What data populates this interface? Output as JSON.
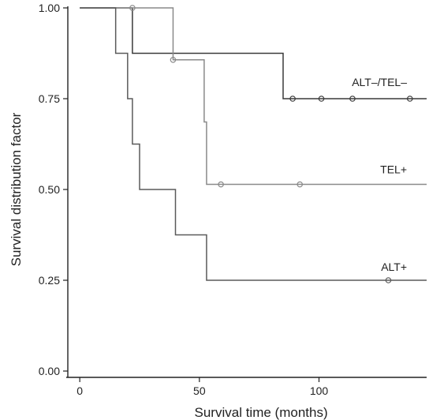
{
  "chart_data": {
    "type": "line",
    "subtype": "kaplan-meier step",
    "title": "",
    "xlabel": "Survival time (months)",
    "ylabel": "Survival distribution factor",
    "xlim": [
      -5,
      145
    ],
    "ylim": [
      0,
      1
    ],
    "xticks": [
      0,
      50,
      100
    ],
    "xtick_labels": [
      "0",
      "50",
      "100"
    ],
    "yticks": [
      0,
      0.25,
      0.5,
      0.75,
      1.0
    ],
    "ytick_labels": [
      "0.00",
      "0.25",
      "0.50",
      "0.75",
      "1.00"
    ],
    "grid": false,
    "legend": "none (labels placed at line ends)",
    "series": [
      {
        "name": "ALT–/TEL–",
        "color": "#3a3a3a",
        "steps": [
          [
            0,
            1.0
          ],
          [
            22,
            0.875
          ],
          [
            85,
            0.75
          ]
        ],
        "censored": [
          [
            89,
            0.75
          ],
          [
            101,
            0.75
          ],
          [
            114,
            0.75
          ],
          [
            138,
            0.75
          ]
        ],
        "end_x": 145
      },
      {
        "name": "TEL+",
        "color": "#8a8a8a",
        "steps": [
          [
            0,
            1.0
          ],
          [
            39,
            0.857
          ],
          [
            52,
            0.686
          ],
          [
            53,
            0.514
          ]
        ],
        "censored": [
          [
            22,
            1.0
          ],
          [
            39,
            0.857
          ],
          [
            59,
            0.514
          ],
          [
            92,
            0.514
          ]
        ],
        "end_x": 145
      },
      {
        "name": "ALT+",
        "color": "#5a5a5a",
        "steps": [
          [
            0,
            1.0
          ],
          [
            15,
            0.875
          ],
          [
            20,
            0.75
          ],
          [
            22,
            0.625
          ],
          [
            25,
            0.5
          ],
          [
            40,
            0.375
          ],
          [
            53,
            0.25
          ]
        ],
        "censored": [
          [
            129,
            0.25
          ]
        ],
        "end_x": 145
      }
    ]
  }
}
